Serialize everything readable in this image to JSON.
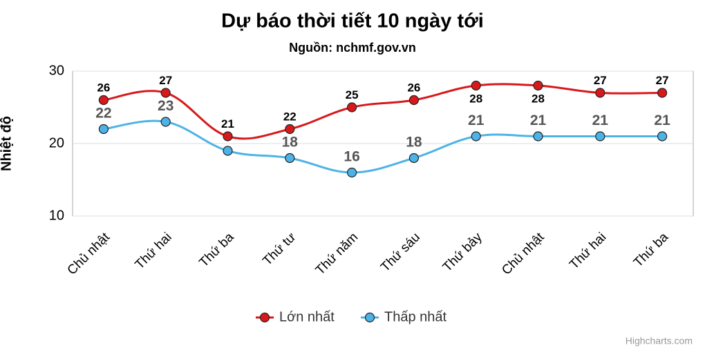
{
  "chart_data": {
    "type": "line",
    "title": "Dự báo thời tiết 10 ngày tới",
    "subtitle": "Nguồn: nchmf.gov.vn",
    "y_label": "Nhiệt độ",
    "credits": "Highcharts.com",
    "categories": [
      "Chủ nhật",
      "Thứ hai",
      "Thứ ba",
      "Thứ tư",
      "Thứ năm",
      "Thứ sáu",
      "Thứ bảy",
      "Chủ nhật",
      "Thứ hai",
      "Thứ ba"
    ],
    "series": [
      {
        "name": "Lớn nhất",
        "color": "#d7191c",
        "values": [
          26,
          27,
          21,
          22,
          25,
          26,
          28,
          28,
          27,
          27
        ]
      },
      {
        "name": "Thấp nhất",
        "color": "#4db3e6",
        "values": [
          22,
          23,
          19,
          18,
          16,
          18,
          21,
          21,
          21,
          21
        ],
        "value_labels": [
          "22",
          "23",
          null,
          "18",
          "16",
          "18",
          "21",
          "21",
          "21",
          "21"
        ]
      }
    ],
    "ylim": [
      10,
      30
    ],
    "yticks": [
      10,
      20,
      30
    ],
    "grid": true,
    "legend": "bottom"
  }
}
